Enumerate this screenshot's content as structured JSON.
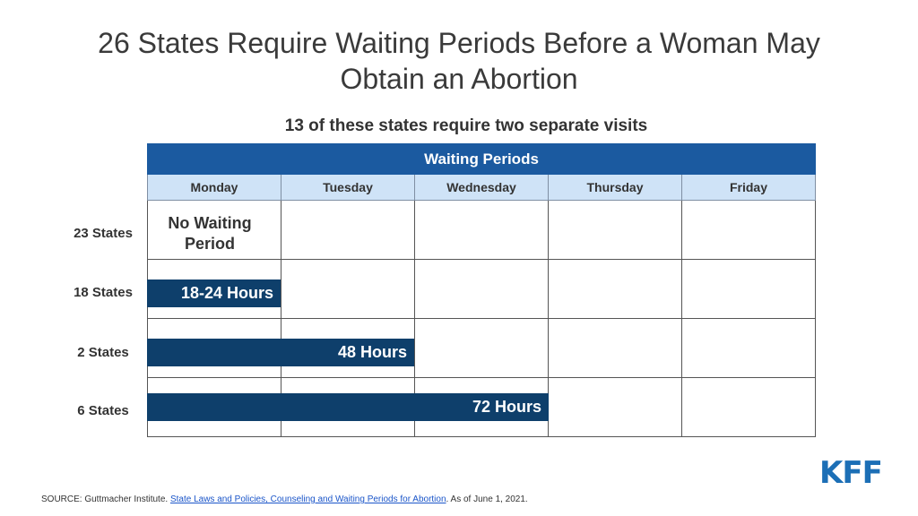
{
  "chart_data": {
    "type": "table",
    "title": "26 States Require Waiting Periods Before a Woman May Obtain an Abortion",
    "subtitle": "13 of these states require two separate visits",
    "header": "Waiting Periods",
    "columns": [
      "Monday",
      "Tuesday",
      "Wednesday",
      "Thursday",
      "Friday"
    ],
    "rows": [
      {
        "label": "23 States",
        "text": "No Waiting Period",
        "span_days": 0
      },
      {
        "label": "18 States",
        "text": "18-24 Hours",
        "span_days": 1
      },
      {
        "label": "2 States",
        "text": "48 Hours",
        "span_days": 2
      },
      {
        "label": "6 States",
        "text": "72 Hours",
        "span_days": 3
      }
    ],
    "colors": {
      "header": "#1b5aa0",
      "day_row": "#cfe3f7",
      "bar": "#0e3f6b"
    }
  },
  "footer": {
    "source_prefix": "SOURCE: Guttmacher Institute. ",
    "source_link": "State Laws and Policies, Counseling and Waiting Periods for Abortion",
    "source_suffix": ". As of June 1, 2021."
  },
  "logo": "KFF"
}
